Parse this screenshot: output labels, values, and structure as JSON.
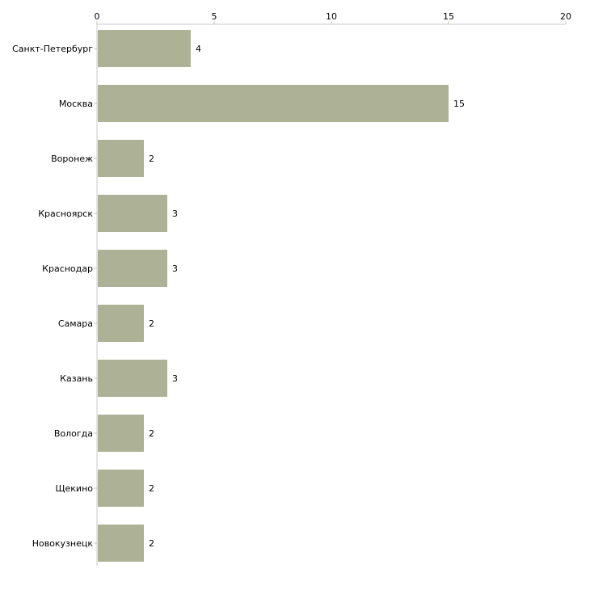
{
  "chart_data": {
    "type": "bar",
    "orientation": "horizontal",
    "title": "",
    "xlabel": "",
    "ylabel": "",
    "xlim": [
      0,
      20
    ],
    "ticks": [
      0,
      5,
      10,
      15,
      20
    ],
    "tick_labels": [
      "0",
      "5",
      "10",
      "15",
      "20"
    ],
    "categories": [
      "Санкт-Петербург",
      "Москва",
      "Воронеж",
      "Красноярск",
      "Краснодар",
      "Самара",
      "Казань",
      "Вологда",
      "Щекино",
      "Новокузнецк"
    ],
    "values": [
      4,
      15,
      2,
      3,
      3,
      2,
      3,
      2,
      2,
      2
    ],
    "data_labels": [
      "4",
      "15",
      "2",
      "3",
      "3",
      "2",
      "3",
      "2",
      "2",
      "2"
    ],
    "grid": false,
    "legend": "none",
    "colors": {
      "bar": "#adb296",
      "axis": "#c8c8c8",
      "tick": "#c8c8a0",
      "text": "#000000"
    }
  }
}
